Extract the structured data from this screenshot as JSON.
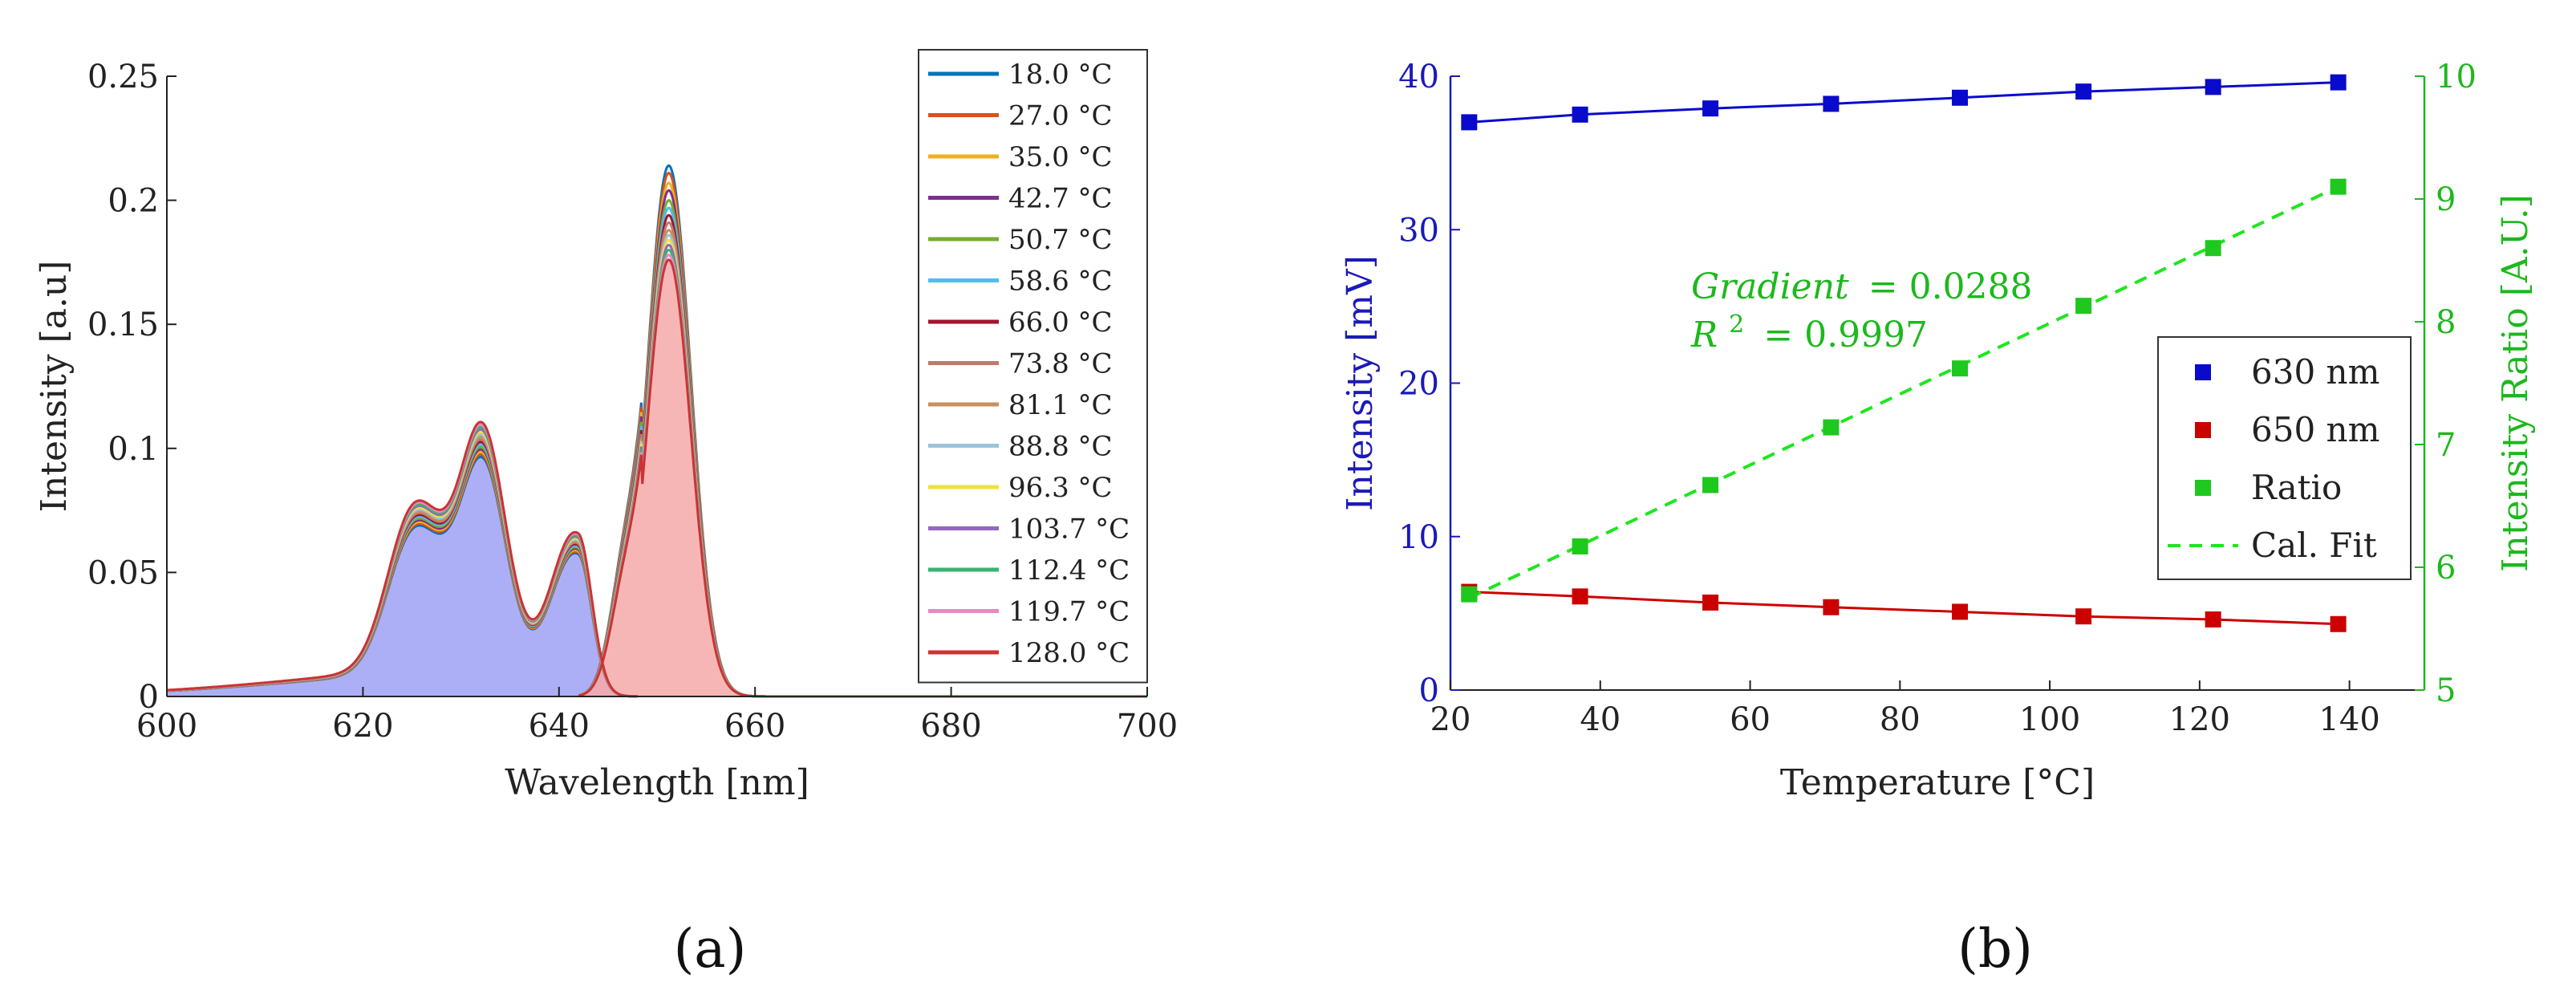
{
  "panel_labels": {
    "a": "(a)",
    "b": "(b)"
  },
  "chart_data": [
    {
      "type": "area",
      "title": "",
      "xlabel": "Wavelength [nm]",
      "ylabel": "Intensity [a.u]",
      "xlim": [
        600,
        700
      ],
      "ylim": [
        0,
        0.25
      ],
      "xticks": [
        600,
        620,
        640,
        660,
        680,
        700
      ],
      "yticks": [
        0,
        0.05,
        0.1,
        0.15,
        0.2,
        0.25
      ],
      "xtick_labels": [
        "600",
        "620",
        "640",
        "660",
        "680",
        "700"
      ],
      "ytick_labels": [
        "0",
        "0.05",
        "0.1",
        "0.15",
        "0.2",
        "0.25"
      ],
      "grid": false,
      "legend_position": "top-right",
      "fill_colors": {
        "band_630": "#a9abf5",
        "band_650": "#f6a9a9",
        "overlap": "#b88ac4"
      },
      "series": [
        {
          "name": "18.0 °C",
          "color": "#0072BD",
          "peak_630": 0.096,
          "peak_650": 0.214
        },
        {
          "name": "27.0 °C",
          "color": "#D95319",
          "peak_630": 0.097,
          "peak_650": 0.211
        },
        {
          "name": "35.0 °C",
          "color": "#EDB120",
          "peak_630": 0.098,
          "peak_650": 0.207
        },
        {
          "name": "42.7 °C",
          "color": "#7E2F8E",
          "peak_630": 0.099,
          "peak_650": 0.204
        },
        {
          "name": "50.7 °C",
          "color": "#77AC30",
          "peak_630": 0.1,
          "peak_650": 0.2
        },
        {
          "name": "58.6 °C",
          "color": "#4DBEEE",
          "peak_630": 0.101,
          "peak_650": 0.197
        },
        {
          "name": "66.0 °C",
          "color": "#A2142F",
          "peak_630": 0.102,
          "peak_650": 0.194
        },
        {
          "name": "73.8 °C",
          "color": "#C07A6A",
          "peak_630": 0.103,
          "peak_650": 0.191
        },
        {
          "name": "81.1 °C",
          "color": "#C99060",
          "peak_630": 0.104,
          "peak_650": 0.188
        },
        {
          "name": "88.8 °C",
          "color": "#9DC3D8",
          "peak_630": 0.105,
          "peak_650": 0.186
        },
        {
          "name": "96.3 °C",
          "color": "#EEE040",
          "peak_630": 0.106,
          "peak_650": 0.184
        },
        {
          "name": "103.7 °C",
          "color": "#9467BD",
          "peak_630": 0.107,
          "peak_650": 0.182
        },
        {
          "name": "112.4 °C",
          "color": "#3CB371",
          "peak_630": 0.108,
          "peak_650": 0.18
        },
        {
          "name": "119.7 °C",
          "color": "#E78AC3",
          "peak_630": 0.109,
          "peak_650": 0.178
        },
        {
          "name": "128.0 °C",
          "color": "#CC3333",
          "peak_630": 0.11,
          "peak_650": 0.176
        }
      ]
    },
    {
      "type": "scatter",
      "title": "",
      "xlabel": "Temperature [°C]",
      "ylabel_left": "Intensity [mV]",
      "ylabel_right": "Intensity Ratio [A.U.]",
      "xlim": [
        20,
        150
      ],
      "ylim_left": [
        0,
        40
      ],
      "ylim_right": [
        5,
        10
      ],
      "xticks": [
        20,
        40,
        60,
        80,
        100,
        120,
        140
      ],
      "yticks_left": [
        0,
        10,
        20,
        30,
        40
      ],
      "yticks_right": [
        5,
        6,
        7,
        8,
        9,
        10
      ],
      "xtick_labels": [
        "20",
        "40",
        "60",
        "80",
        "100",
        "120",
        "140"
      ],
      "ytick_labels_left": [
        "0",
        "10",
        "20",
        "30",
        "40"
      ],
      "ytick_labels_right": [
        "5",
        "6",
        "7",
        "8",
        "9",
        "10"
      ],
      "grid": false,
      "legend_position": "center-right",
      "x": [
        22.5,
        37.3,
        54.7,
        70.8,
        88.0,
        104.5,
        121.8,
        138.5
      ],
      "series": [
        {
          "name": "630 nm",
          "axis": "left",
          "color": "#0a0acc",
          "marker": "square",
          "values": [
            37.0,
            37.5,
            37.9,
            38.2,
            38.6,
            39.0,
            39.3,
            39.6
          ],
          "fit_line": true
        },
        {
          "name": "650 nm",
          "axis": "left",
          "color": "#cc0000",
          "marker": "square",
          "values": [
            6.4,
            6.1,
            5.7,
            5.4,
            5.1,
            4.8,
            4.6,
            4.3
          ],
          "fit_line": true
        },
        {
          "name": "Ratio",
          "axis": "right",
          "color": "#1ec81e",
          "marker": "square",
          "values": [
            5.78,
            6.17,
            6.67,
            7.14,
            7.62,
            8.13,
            8.6,
            9.1
          ]
        },
        {
          "name": "Cal. Fit",
          "axis": "right",
          "color": "#1ee61e",
          "style": "dashed",
          "fit": {
            "x": [
              22.5,
              138.5
            ],
            "y": [
              5.75,
              9.1
            ]
          }
        }
      ],
      "annotation": {
        "gradient_label": "Gradient",
        "gradient_value": "= 0.0288",
        "r2_label": "R",
        "r2_sup": "2",
        "r2_value": "= 0.9997"
      },
      "axis_colors": {
        "left": "#1a1ab8",
        "right": "#1db81d"
      }
    }
  ]
}
